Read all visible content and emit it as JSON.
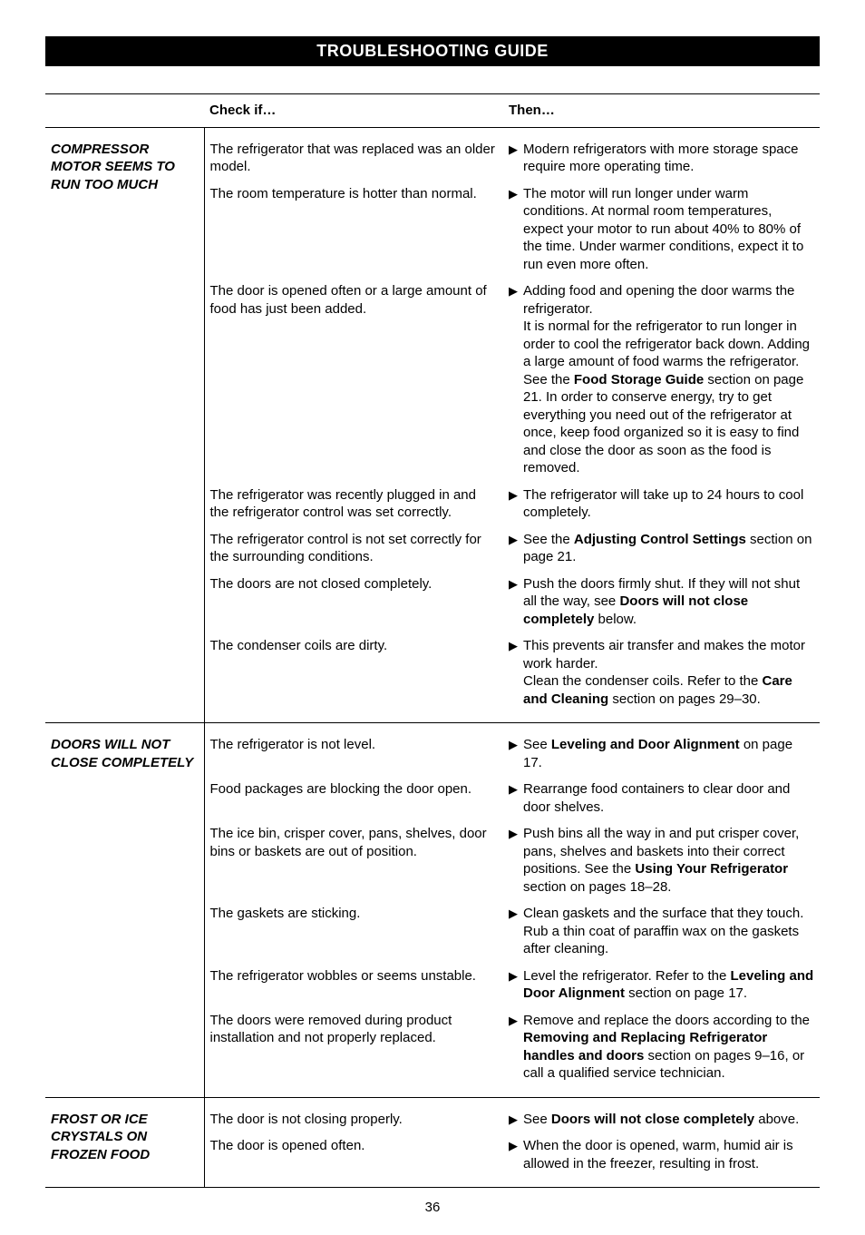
{
  "title": "TROUBLESHOOTING GUIDE",
  "headers": {
    "problem": "",
    "check": "Check if…",
    "then": "Then…"
  },
  "page_number": "36",
  "colors": {
    "bg": "#ffffff",
    "fg": "#000000",
    "bar_bg": "#000000",
    "bar_fg": "#ffffff"
  },
  "sections": [
    {
      "problem": "COMPRESSOR MOTOR SEEMS TO RUN TOO MUCH",
      "rows": [
        {
          "check": "The refrigerator that was replaced was an older model.",
          "then": [
            {
              "parts": [
                {
                  "t": "Modern refrigerators with more storage space require more operating time."
                }
              ]
            }
          ]
        },
        {
          "check": "The room temperature is hotter than normal.",
          "then": [
            {
              "parts": [
                {
                  "t": "The motor will run longer under warm conditions. At normal room temperatures, expect your motor to run about 40% to 80% of the time. Under warmer conditions, expect it to run even more often."
                }
              ]
            }
          ]
        },
        {
          "check": "The door is opened often or a large amount of food has just been added.",
          "then": [
            {
              "parts": [
                {
                  "t": "Adding food and opening the door warms the refrigerator."
                },
                {
                  "br": true
                },
                {
                  "t": "It is normal for the refrigerator to run longer in order to cool the refrigerator back down. Adding a large amount of food warms the refrigerator. See the "
                },
                {
                  "t": "Food Storage Guide",
                  "b": true
                },
                {
                  "t": " section on page 21. In order to conserve energy, try to get everything you need out of the refrigerator at once, keep food organized so it is easy to find and close the door as soon as the food is removed."
                }
              ]
            }
          ]
        },
        {
          "check": "The refrigerator was recently plugged in and the refrigerator control was set correctly.",
          "then": [
            {
              "parts": [
                {
                  "t": "The refrigerator will take up to 24 hours to cool completely."
                }
              ]
            }
          ]
        },
        {
          "check": "The refrigerator control is not set correctly for the surrounding conditions.",
          "then": [
            {
              "parts": [
                {
                  "t": "See the "
                },
                {
                  "t": "Adjusting Control Settings",
                  "b": true
                },
                {
                  "t": " section on page 21."
                }
              ]
            }
          ]
        },
        {
          "check": "The doors are not closed completely.",
          "then": [
            {
              "parts": [
                {
                  "t": "Push the doors firmly shut. If they will not shut all the way, see "
                },
                {
                  "t": "Doors will not close completely",
                  "b": true
                },
                {
                  "t": " below."
                }
              ]
            }
          ]
        },
        {
          "check": "The condenser coils are dirty.",
          "then": [
            {
              "parts": [
                {
                  "t": "This prevents air transfer and makes the motor work harder."
                },
                {
                  "br": true
                },
                {
                  "t": "Clean the condenser coils. Refer to the "
                },
                {
                  "t": "Care and Cleaning",
                  "b": true
                },
                {
                  "t": " section on pages 29–30."
                }
              ]
            }
          ]
        }
      ]
    },
    {
      "problem": "DOORS WILL NOT CLOSE COMPLETELY",
      "rows": [
        {
          "check": "The refrigerator is not level.",
          "then": [
            {
              "parts": [
                {
                  "t": "See "
                },
                {
                  "t": "Leveling and Door Alignment",
                  "b": true
                },
                {
                  "t": " on page 17."
                }
              ]
            }
          ]
        },
        {
          "check": "Food packages are blocking the door open.",
          "then": [
            {
              "parts": [
                {
                  "t": "Rearrange food containers to clear door and door shelves."
                }
              ]
            }
          ]
        },
        {
          "check": "The ice bin, crisper cover, pans, shelves, door bins or baskets are out of position.",
          "then": [
            {
              "parts": [
                {
                  "t": "Push bins all the way in and put crisper cover, pans, shelves and baskets into their correct positions. See the "
                },
                {
                  "t": "Using Your Refrigerator",
                  "b": true
                },
                {
                  "t": " section on pages 18–28."
                }
              ]
            }
          ]
        },
        {
          "check": "The gaskets are sticking.",
          "then": [
            {
              "parts": [
                {
                  "t": "Clean gaskets and the surface that they touch. Rub a thin coat of paraffin wax on the gaskets after cleaning."
                }
              ]
            }
          ]
        },
        {
          "check": "The refrigerator wobbles or seems unstable.",
          "then": [
            {
              "parts": [
                {
                  "t": "Level the refrigerator. Refer to the "
                },
                {
                  "t": "Leveling and Door Alignment",
                  "b": true
                },
                {
                  "t": " section on page 17."
                }
              ]
            }
          ]
        },
        {
          "check": "The doors were removed during product installation and not properly replaced.",
          "then": [
            {
              "parts": [
                {
                  "t": "Remove and replace the doors according to the "
                },
                {
                  "t": "Removing and Replacing Refrigerator handles and doors",
                  "b": true
                },
                {
                  "t": " section on pages 9–16, or call a qualified service technician."
                }
              ]
            }
          ]
        }
      ]
    },
    {
      "problem": "FROST OR ICE CRYSTALS ON FROZEN FOOD",
      "rows": [
        {
          "check": "The door is not closing properly.",
          "then": [
            {
              "parts": [
                {
                  "t": "See "
                },
                {
                  "t": "Doors will not close completely",
                  "b": true
                },
                {
                  "t": " above."
                }
              ]
            }
          ]
        },
        {
          "check": "The door is opened often.",
          "then": [
            {
              "parts": [
                {
                  "t": "When the door is opened, warm, humid air is allowed in the freezer, resulting in frost."
                }
              ]
            }
          ]
        }
      ]
    }
  ]
}
